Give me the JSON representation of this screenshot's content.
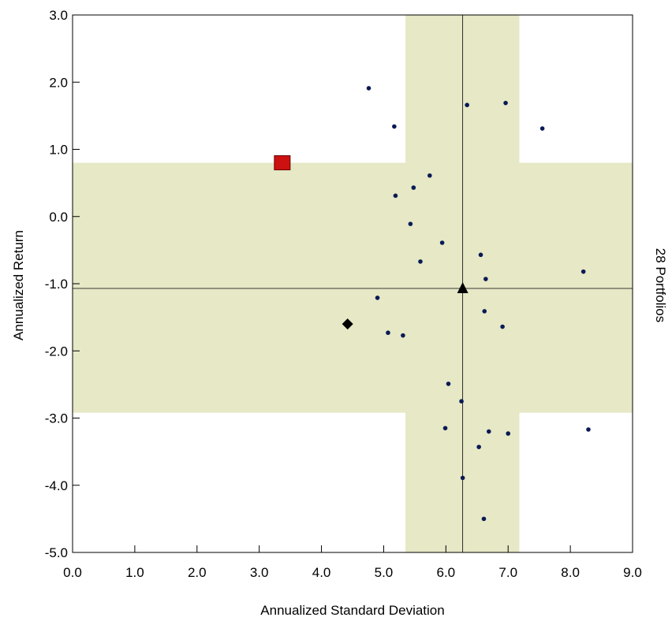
{
  "chart_data": {
    "type": "scatter",
    "xlabel": "Annualized Standard Deviation",
    "ylabel": "Annualized Return",
    "right_label": "28 Portfolios",
    "xlim": [
      0,
      9
    ],
    "ylim": [
      -5,
      3
    ],
    "x_ticks": [
      "0.0",
      "1.0",
      "2.0",
      "3.0",
      "4.0",
      "5.0",
      "6.0",
      "7.0",
      "8.0",
      "9.0"
    ],
    "y_ticks": [
      "3.0",
      "2.0",
      "1.0",
      "0.0",
      "-1.0",
      "-2.0",
      "-3.0",
      "-4.0",
      "-5.0"
    ],
    "shaded_band_x": [
      5.35,
      7.18
    ],
    "shaded_band_y": [
      -2.92,
      0.8
    ],
    "median_x": 6.27,
    "median_y": -1.07,
    "points": [
      {
        "x": 4.76,
        "y": 1.91
      },
      {
        "x": 6.34,
        "y": 1.66
      },
      {
        "x": 6.96,
        "y": 1.69
      },
      {
        "x": 5.17,
        "y": 1.34
      },
      {
        "x": 7.55,
        "y": 1.31
      },
      {
        "x": 5.74,
        "y": 0.61
      },
      {
        "x": 5.48,
        "y": 0.43
      },
      {
        "x": 5.19,
        "y": 0.31
      },
      {
        "x": 5.43,
        "y": -0.11
      },
      {
        "x": 5.94,
        "y": -0.39
      },
      {
        "x": 6.56,
        "y": -0.57
      },
      {
        "x": 5.59,
        "y": -0.67
      },
      {
        "x": 8.21,
        "y": -0.82
      },
      {
        "x": 6.64,
        "y": -0.93
      },
      {
        "x": 4.9,
        "y": -1.21
      },
      {
        "x": 6.62,
        "y": -1.41
      },
      {
        "x": 6.91,
        "y": -1.64
      },
      {
        "x": 5.07,
        "y": -1.73
      },
      {
        "x": 5.31,
        "y": -1.77
      },
      {
        "x": 6.04,
        "y": -2.49
      },
      {
        "x": 6.25,
        "y": -2.75
      },
      {
        "x": 5.99,
        "y": -3.15
      },
      {
        "x": 6.69,
        "y": -3.2
      },
      {
        "x": 7.0,
        "y": -3.23
      },
      {
        "x": 8.29,
        "y": -3.17
      },
      {
        "x": 6.53,
        "y": -3.43
      },
      {
        "x": 6.27,
        "y": -3.89
      },
      {
        "x": 6.61,
        "y": -4.5
      }
    ],
    "markers": [
      {
        "shape": "square",
        "x": 3.37,
        "y": 0.8,
        "color": "#cc1111"
      },
      {
        "shape": "diamond",
        "x": 4.42,
        "y": -1.6,
        "color": "#000000"
      },
      {
        "shape": "triangle",
        "x": 6.27,
        "y": -1.07,
        "color": "#000000"
      }
    ],
    "colors": {
      "band": "#e6e8c6",
      "point": "#0a1a55",
      "square": "#cc1111",
      "axis": "#000000"
    },
    "grid": false
  }
}
